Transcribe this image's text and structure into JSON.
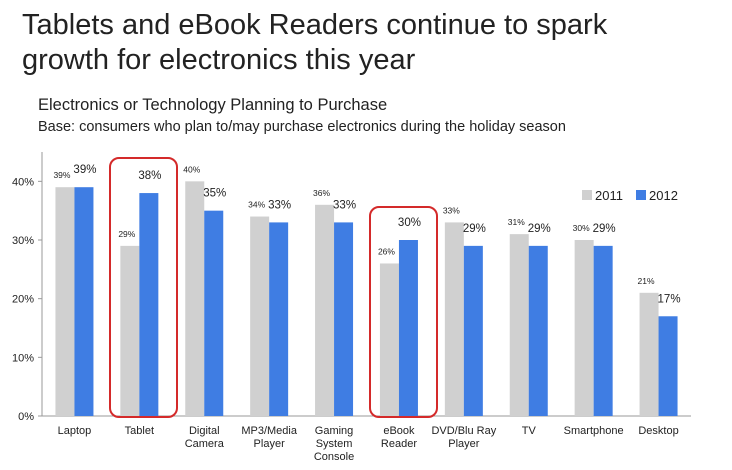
{
  "chart_data": {
    "type": "bar",
    "title": "Tablets and eBook Readers continue to spark\ngrowth for electronics this year",
    "subtitle": "Electronics or Technology Planning to Purchase",
    "note": "Base: consumers who plan to/may purchase electronics during the holiday season",
    "categories": [
      "Laptop",
      "Tablet",
      "Digital\nCamera",
      "MP3/Media\nPlayer",
      "Gaming\nSystem\nConsole",
      "eBook\nReader",
      "DVD/Blu Ray\nPlayer",
      "TV",
      "Smartphone",
      "Desktop"
    ],
    "series": [
      {
        "name": "2011",
        "color": "#d0d0d0",
        "values": [
          39,
          29,
          40,
          34,
          36,
          26,
          33,
          31,
          30,
          21
        ],
        "value_labels": [
          "39%",
          "29%",
          "40%",
          "34%",
          "36%",
          "26%",
          "33%",
          "31%",
          "30%",
          "21%"
        ]
      },
      {
        "name": "2012",
        "color": "#3f7de3",
        "values": [
          39,
          38,
          35,
          33,
          33,
          30,
          29,
          29,
          29,
          17
        ],
        "value_labels": [
          "39%",
          "38%",
          "35%",
          "33%",
          "33%",
          "30%",
          "29%",
          "29%",
          "29%",
          "17%"
        ]
      }
    ],
    "ylim": [
      0,
      45
    ],
    "yticks": [
      {
        "value": 0,
        "label": "0%"
      },
      {
        "value": 10,
        "label": "10%"
      },
      {
        "value": 20,
        "label": "20%"
      },
      {
        "value": 30,
        "label": "30%"
      },
      {
        "value": 40,
        "label": "40%"
      }
    ],
    "legend": "top-right"
  }
}
